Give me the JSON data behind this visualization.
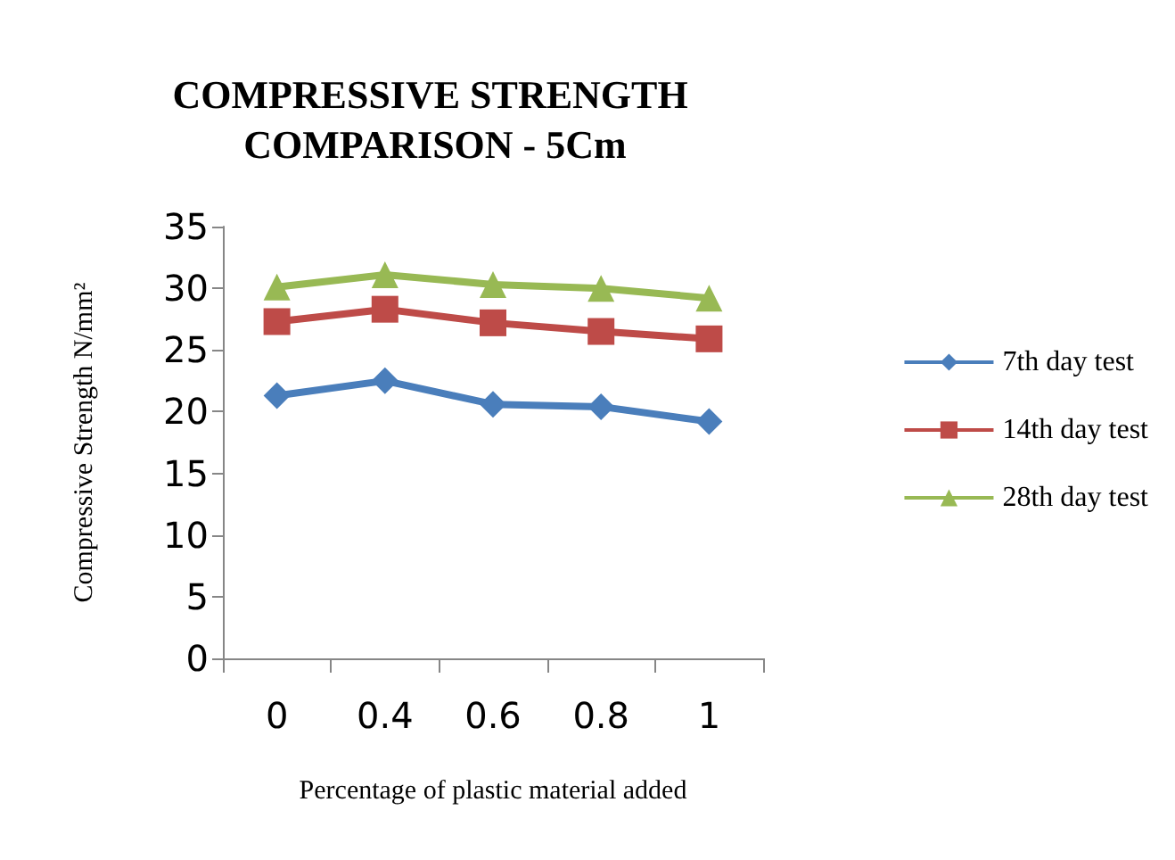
{
  "chart_data": {
    "type": "line",
    "title": "COMPRESSIVE STRENGTH COMPARISON - 5Cm",
    "xlabel": "Percentage of plastic material added",
    "ylabel": "Compressive Strength N/mm²",
    "categories": [
      "0",
      "0.4",
      "0.6",
      "0.8",
      "1"
    ],
    "ylim": [
      0,
      35
    ],
    "yticks": [
      0,
      5,
      10,
      15,
      20,
      25,
      30,
      35
    ],
    "grid": false,
    "legend": "right",
    "series": [
      {
        "name": "7th day test",
        "color": "#4a7ebb",
        "marker": "diamond",
        "values": [
          21.3,
          22.5,
          20.6,
          20.4,
          19.2
        ]
      },
      {
        "name": "14th day test",
        "color": "#be4b48",
        "marker": "square",
        "values": [
          27.3,
          28.3,
          27.2,
          26.5,
          25.9
        ]
      },
      {
        "name": "28th day test",
        "color": "#98b954",
        "marker": "triangle",
        "values": [
          30.1,
          31.1,
          30.3,
          30.0,
          29.2
        ]
      }
    ]
  }
}
